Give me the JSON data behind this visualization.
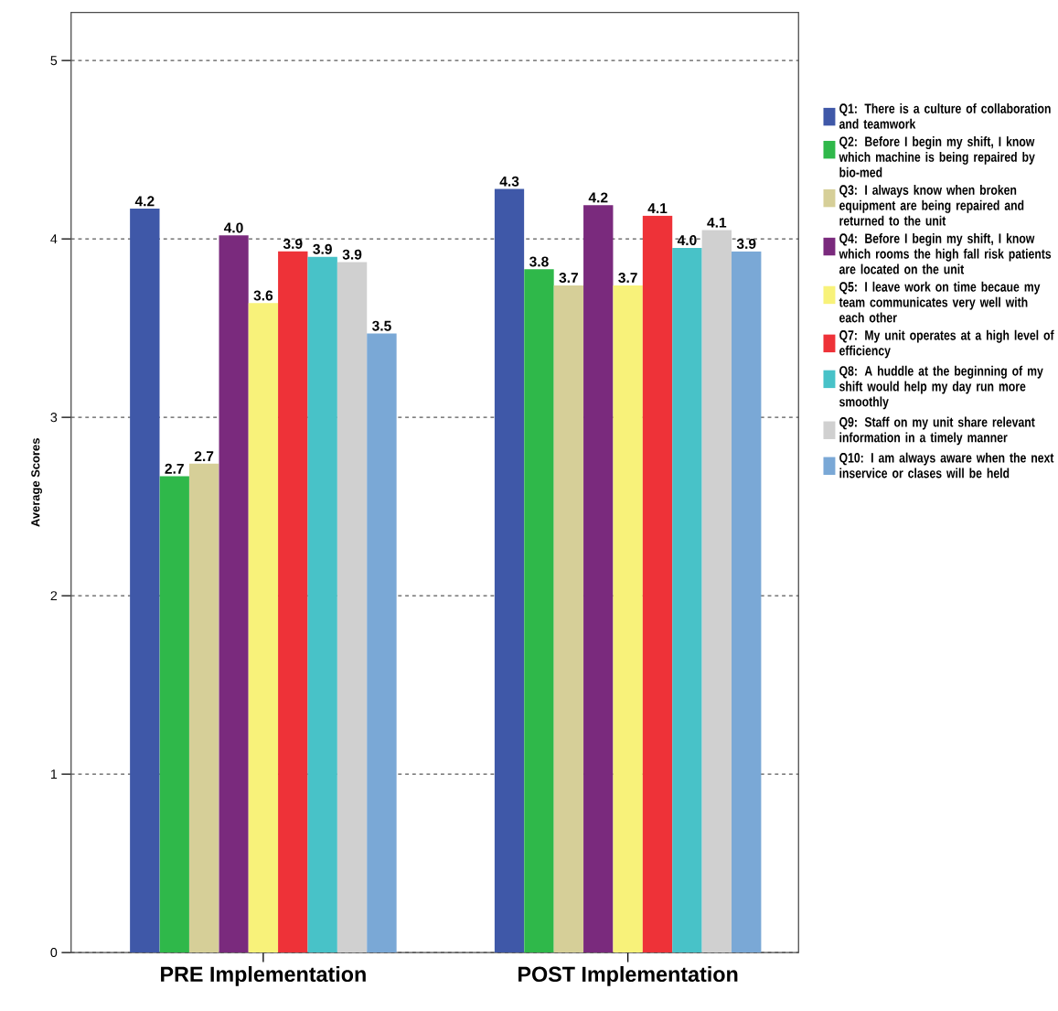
{
  "chart_data": {
    "type": "bar",
    "ylabel": "Average Scores",
    "categories": [
      "PRE Implementation",
      "POST Implementation"
    ],
    "series": [
      {
        "name": "Q1: There is a culture of collaboration and teamwork",
        "color": "#3f58a8",
        "values": [
          4.17,
          4.28
        ],
        "value_labels": [
          "4.2",
          "4.3"
        ]
      },
      {
        "name": "Q2: Before I begin my shift, I know which machine is being repaired by bio-med",
        "color": "#2fb84a",
        "values": [
          2.67,
          3.83
        ],
        "value_labels": [
          "2.7",
          "3.8"
        ]
      },
      {
        "name": "Q3: I always know when broken equipment are being repaired and returned to the unit",
        "color": "#d6cf98",
        "values": [
          2.74,
          3.74
        ],
        "value_labels": [
          "2.7",
          "3.7"
        ]
      },
      {
        "name": "Q4: Before I begin my shift, I know which rooms the high fall risk patients are located on the unit",
        "color": "#7a2a7d",
        "values": [
          4.02,
          4.19
        ],
        "value_labels": [
          "4.0",
          "4.2"
        ]
      },
      {
        "name": "Q5: I leave work on time becaue my team communicates very well with each other",
        "color": "#f8f27a",
        "values": [
          3.64,
          3.74
        ],
        "value_labels": [
          "3.6",
          "3.7"
        ]
      },
      {
        "name": "Q7: My unit operates at a high level of efficiency",
        "color": "#ee3238",
        "values": [
          3.93,
          4.13
        ],
        "value_labels": [
          "3.9",
          "4.1"
        ]
      },
      {
        "name": "Q8: A huddle at the beginning of my shift would help my day run more smoothly",
        "color": "#48c2c8",
        "values": [
          3.9,
          3.95
        ],
        "value_labels": [
          "3.9",
          "4.0"
        ]
      },
      {
        "name": "Q9: Staff on my unit share relevant information in a timely manner",
        "color": "#d0d0d0",
        "values": [
          3.87,
          4.05
        ],
        "value_labels": [
          "3.9",
          "4.1"
        ]
      },
      {
        "name": "Q10: I am always aware when the next inservice or clases will be held",
        "color": "#7aa8d6",
        "values": [
          3.47,
          3.93
        ],
        "value_labels": [
          "3.5",
          "3.9"
        ]
      }
    ],
    "ylim": [
      0,
      5.27
    ],
    "yticks": [
      0,
      1,
      2,
      3,
      4,
      5
    ],
    "grid": "y",
    "legend": "right"
  }
}
